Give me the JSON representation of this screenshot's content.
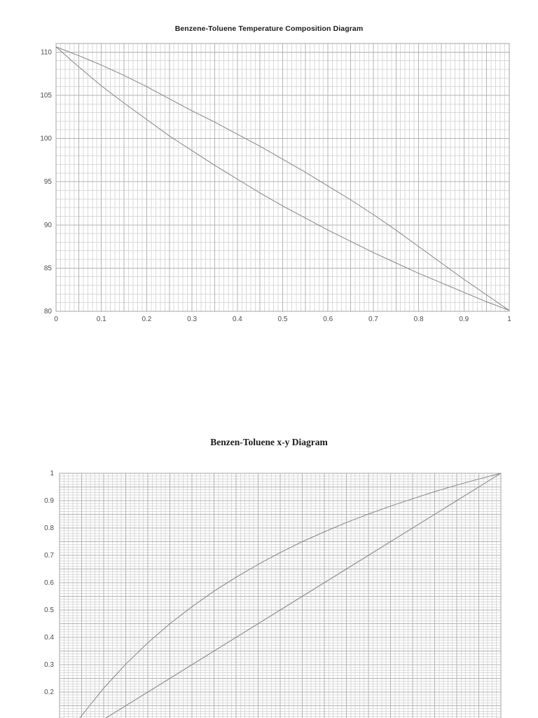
{
  "page": {
    "background_color": "#ffffff",
    "grid_minor_color": "#d9d9d9",
    "grid_major_color": "#b3b3b3",
    "plot_border_color": "#a6a6a6",
    "curve_color": "#848484",
    "tick_label_color": "#4d4d4d"
  },
  "chart_data": [
    {
      "type": "line",
      "title": "Benzene-Toluene Temperature Composition Diagram",
      "xlabel": "",
      "ylabel": "",
      "x_range": [
        0,
        1
      ],
      "y_range": [
        80,
        111
      ],
      "x_minor_step": 0.01,
      "x_major_step": 0.05,
      "y_minor_step": 1,
      "y_major_step": 5,
      "grid": "fine graph-paper, minor and major gridlines",
      "legend": "none",
      "x_ticks": [
        {
          "v": 0,
          "label": "0"
        },
        {
          "v": 0.1,
          "label": "0.1"
        },
        {
          "v": 0.2,
          "label": "0.2"
        },
        {
          "v": 0.3,
          "label": "0.3"
        },
        {
          "v": 0.4,
          "label": "0.4"
        },
        {
          "v": 0.5,
          "label": "0.5"
        },
        {
          "v": 0.6,
          "label": "0.6"
        },
        {
          "v": 0.7,
          "label": "0.7"
        },
        {
          "v": 0.8,
          "label": "0.8"
        },
        {
          "v": 0.9,
          "label": "0.9"
        },
        {
          "v": 1,
          "label": "1"
        }
      ],
      "y_ticks": [
        {
          "v": 110,
          "label": "110"
        },
        {
          "v": 105,
          "label": "105"
        },
        {
          "v": 100,
          "label": "100"
        },
        {
          "v": 95,
          "label": "95"
        },
        {
          "v": 90,
          "label": "90"
        },
        {
          "v": 85,
          "label": "85"
        },
        {
          "v": 80,
          "label": "80"
        }
      ],
      "series": [
        {
          "name": "dew-point-vapor-curve",
          "points": [
            [
              0,
              110.6
            ],
            [
              0.05,
              109.6
            ],
            [
              0.1,
              108.5
            ],
            [
              0.15,
              107.3
            ],
            [
              0.2,
              106.0
            ],
            [
              0.25,
              104.6
            ],
            [
              0.3,
              103.2
            ],
            [
              0.35,
              101.9
            ],
            [
              0.4,
              100.5
            ],
            [
              0.45,
              99.1
            ],
            [
              0.5,
              97.6
            ],
            [
              0.55,
              96.1
            ],
            [
              0.6,
              94.5
            ],
            [
              0.65,
              92.9
            ],
            [
              0.7,
              91.2
            ],
            [
              0.75,
              89.4
            ],
            [
              0.8,
              87.5
            ],
            [
              0.85,
              85.6
            ],
            [
              0.9,
              83.7
            ],
            [
              0.95,
              81.9
            ],
            [
              1,
              80.1
            ]
          ]
        },
        {
          "name": "bubble-point-liquid-curve",
          "points": [
            [
              0,
              110.6
            ],
            [
              0.05,
              108.3
            ],
            [
              0.1,
              106.1
            ],
            [
              0.15,
              104.1
            ],
            [
              0.2,
              102.2
            ],
            [
              0.25,
              100.3
            ],
            [
              0.3,
              98.6
            ],
            [
              0.35,
              96.9
            ],
            [
              0.4,
              95.3
            ],
            [
              0.45,
              93.7
            ],
            [
              0.5,
              92.2
            ],
            [
              0.55,
              90.8
            ],
            [
              0.6,
              89.4
            ],
            [
              0.65,
              88.1
            ],
            [
              0.7,
              86.8
            ],
            [
              0.75,
              85.6
            ],
            [
              0.8,
              84.4
            ],
            [
              0.85,
              83.3
            ],
            [
              0.9,
              82.2
            ],
            [
              0.95,
              81.1
            ],
            [
              1,
              80.1
            ]
          ]
        }
      ]
    },
    {
      "type": "line",
      "title": "Benzen-Toluene x-y Diagram",
      "xlabel": "",
      "ylabel": "",
      "x_range": [
        0,
        1
      ],
      "y_range": [
        0,
        1
      ],
      "x_minor_step": 0.01,
      "x_major_step": 0.05,
      "y_minor_step": 0.01,
      "y_major_step": 0.05,
      "grid": "fine graph-paper, minor and major gridlines; bottom of plot clipped by page edge",
      "legend": "none",
      "x_ticks": [],
      "y_ticks": [
        {
          "v": 1,
          "label": "1"
        },
        {
          "v": 0.9,
          "label": "0.9"
        },
        {
          "v": 0.8,
          "label": "0.8"
        },
        {
          "v": 0.7,
          "label": "0.7"
        },
        {
          "v": 0.6,
          "label": "0.6"
        },
        {
          "v": 0.5,
          "label": "0.5"
        },
        {
          "v": 0.4,
          "label": "0.4"
        },
        {
          "v": 0.3,
          "label": "0.3"
        },
        {
          "v": 0.2,
          "label": "0.2"
        }
      ],
      "series": [
        {
          "name": "equilibrium-curve",
          "points": [
            [
              0,
              0
            ],
            [
              0.05,
              0.114
            ],
            [
              0.1,
              0.214
            ],
            [
              0.15,
              0.302
            ],
            [
              0.2,
              0.38
            ],
            [
              0.25,
              0.45
            ],
            [
              0.3,
              0.512
            ],
            [
              0.35,
              0.569
            ],
            [
              0.4,
              0.62
            ],
            [
              0.45,
              0.667
            ],
            [
              0.5,
              0.71
            ],
            [
              0.55,
              0.75
            ],
            [
              0.6,
              0.786
            ],
            [
              0.65,
              0.82
            ],
            [
              0.7,
              0.851
            ],
            [
              0.75,
              0.88
            ],
            [
              0.8,
              0.907
            ],
            [
              0.85,
              0.933
            ],
            [
              0.9,
              0.957
            ],
            [
              0.95,
              0.979
            ],
            [
              1,
              1
            ]
          ]
        },
        {
          "name": "y-equals-x-diagonal",
          "points": [
            [
              0,
              0
            ],
            [
              1,
              1
            ]
          ]
        }
      ]
    }
  ]
}
